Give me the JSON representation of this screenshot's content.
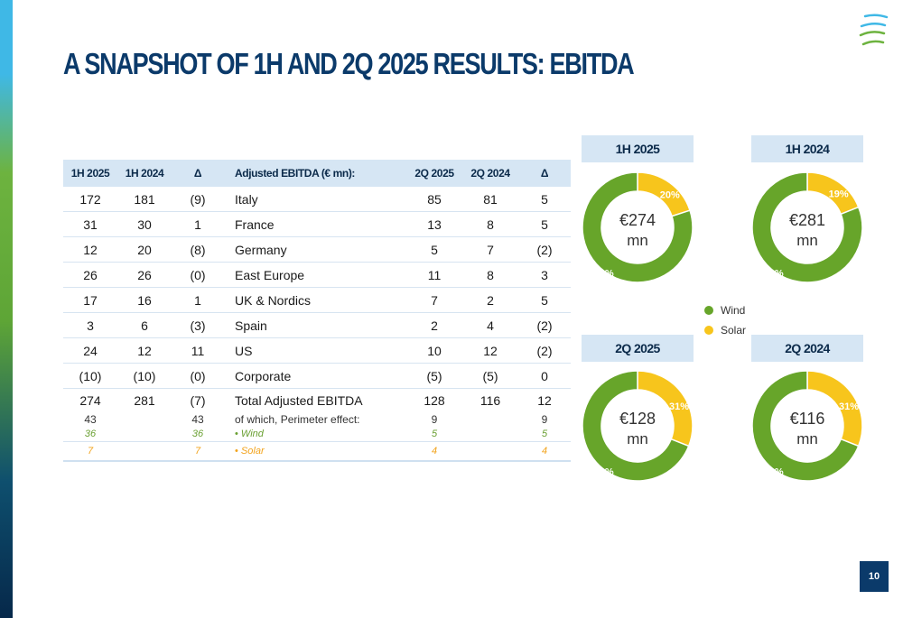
{
  "title": "A SNAPSHOT OF 1H AND 2Q 2025 RESULTS: EBITDA",
  "page_number": "10",
  "colors": {
    "wind": "#67a52a",
    "solar": "#f7c51c",
    "navy": "#0b3a6a",
    "header_bg": "#d6e6f4"
  },
  "table": {
    "headers": [
      "1H 2025",
      "1H 2024",
      "Δ",
      "Adjusted EBITDA (€ mn):",
      "2Q 2025",
      "2Q 2024",
      "Δ"
    ],
    "rows": [
      [
        "172",
        "181",
        "(9)",
        "Italy",
        "85",
        "81",
        "5"
      ],
      [
        "31",
        "30",
        "1",
        "France",
        "13",
        "8",
        "5"
      ],
      [
        "12",
        "20",
        "(8)",
        "Germany",
        "5",
        "7",
        "(2)"
      ],
      [
        "26",
        "26",
        "(0)",
        "East Europe",
        "11",
        "8",
        "3"
      ],
      [
        "17",
        "16",
        "1",
        "UK & Nordics",
        "7",
        "2",
        "5"
      ],
      [
        "3",
        "6",
        "(3)",
        "Spain",
        "2",
        "4",
        "(2)"
      ],
      [
        "24",
        "12",
        "11",
        "US",
        "10",
        "12",
        "(2)"
      ],
      [
        "(10)",
        "(10)",
        "(0)",
        "Corporate",
        "(5)",
        "(5)",
        "0"
      ]
    ],
    "total": [
      "274",
      "281",
      "(7)",
      "Total Adjusted EBITDA",
      "128",
      "116",
      "12"
    ],
    "perimeter": [
      "43",
      "",
      "43",
      "of which, Perimeter effect:",
      "9",
      "",
      "9"
    ],
    "wind": [
      "36",
      "",
      "36",
      "Wind",
      "5",
      "",
      "5"
    ],
    "solar": [
      "7",
      "",
      "7",
      "Solar",
      "4",
      "",
      "4"
    ],
    "bullet": "•"
  },
  "legend": {
    "wind": "Wind",
    "solar": "Solar"
  },
  "chart_data": [
    {
      "type": "pie",
      "title": "1H 2025",
      "center_value": "€274",
      "center_unit": "mn",
      "categories": [
        "Wind",
        "Solar"
      ],
      "values": [
        80,
        20
      ],
      "labels": [
        "80%",
        "20%"
      ]
    },
    {
      "type": "pie",
      "title": "1H 2024",
      "center_value": "€281",
      "center_unit": "mn",
      "categories": [
        "Wind",
        "Solar"
      ],
      "values": [
        81,
        19
      ],
      "labels": [
        "81%",
        "19%"
      ]
    },
    {
      "type": "pie",
      "title": "2Q 2025",
      "center_value": "€128",
      "center_unit": "mn",
      "categories": [
        "Wind",
        "Solar"
      ],
      "values": [
        69,
        31
      ],
      "labels": [
        "69%",
        "31%"
      ]
    },
    {
      "type": "pie",
      "title": "2Q 2024",
      "center_value": "€116",
      "center_unit": "mn",
      "categories": [
        "Wind",
        "Solar"
      ],
      "values": [
        69,
        31
      ],
      "labels": [
        "69%",
        "31%"
      ]
    }
  ]
}
